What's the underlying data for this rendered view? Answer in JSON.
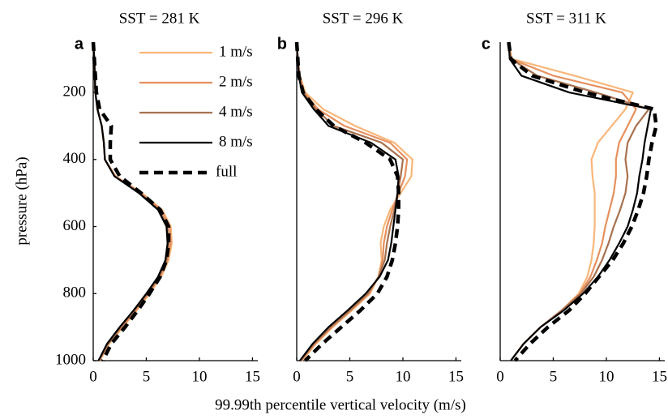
{
  "xlabel": "99.99th percentile vertical velocity (m/s)",
  "chart_data": [
    {
      "type": "line",
      "title": "SST = 281 K",
      "panel": "a",
      "ylabel": "pressure (hPa)",
      "legend": "upper right",
      "y": [
        50,
        100,
        150,
        200,
        250,
        300,
        350,
        400,
        450,
        500,
        550,
        600,
        650,
        700,
        750,
        800,
        850,
        900,
        950,
        1000
      ],
      "xlim": [
        0,
        15.5
      ],
      "xticks": [
        0,
        5,
        10,
        15
      ],
      "ylim": [
        1000,
        50
      ],
      "yticks": [
        200,
        400,
        600,
        800,
        1000
      ],
      "series": [
        {
          "name": "1 m/s",
          "color": "#f9b67a",
          "style": "solid",
          "values": [
            0,
            0.1,
            0.15,
            0.2,
            0.4,
            0.8,
            1.0,
            1.1,
            2.1,
            4.6,
            6.5,
            7.3,
            7.4,
            7.1,
            6.4,
            5.3,
            4.1,
            2.8,
            1.5,
            0.6
          ]
        },
        {
          "name": "2 m/s",
          "color": "#e5905e",
          "style": "solid",
          "values": [
            0,
            0.1,
            0.15,
            0.2,
            0.4,
            0.8,
            1.0,
            1.1,
            2.1,
            4.5,
            6.4,
            7.2,
            7.3,
            7.0,
            6.3,
            5.2,
            4.0,
            2.7,
            1.4,
            0.6
          ]
        },
        {
          "name": "4 m/s",
          "color": "#a8714f",
          "style": "solid",
          "values": [
            0,
            0.1,
            0.15,
            0.2,
            0.4,
            0.8,
            1.0,
            1.1,
            2.0,
            4.4,
            6.2,
            7.0,
            7.1,
            6.9,
            6.2,
            5.1,
            3.9,
            2.6,
            1.4,
            0.5
          ]
        },
        {
          "name": "8 m/s",
          "color": "#000000",
          "style": "solid",
          "values": [
            0,
            0.1,
            0.15,
            0.2,
            0.4,
            0.8,
            1.0,
            1.1,
            2.0,
            4.3,
            6.1,
            6.9,
            7.0,
            6.8,
            6.1,
            5.0,
            3.8,
            2.5,
            1.3,
            0.5
          ]
        },
        {
          "name": "full",
          "color": "#000000",
          "style": "dashed",
          "values": [
            0,
            0.1,
            0.2,
            0.3,
            0.6,
            1.7,
            1.6,
            1.6,
            2.5,
            4.5,
            6.3,
            7.1,
            7.1,
            6.9,
            6.3,
            5.3,
            4.2,
            3.0,
            1.7,
            0.9
          ]
        }
      ]
    },
    {
      "type": "line",
      "title": "SST = 296 K",
      "panel": "b",
      "y": [
        50,
        100,
        150,
        200,
        250,
        300,
        350,
        400,
        450,
        500,
        550,
        600,
        650,
        700,
        750,
        800,
        850,
        900,
        950,
        1000
      ],
      "xlim": [
        0,
        15.5
      ],
      "xticks": [
        0,
        5,
        10,
        15
      ],
      "ylim": [
        1000,
        50
      ],
      "series": [
        {
          "name": "1 m/s",
          "color": "#f9b67a",
          "style": "solid",
          "values": [
            0,
            0.1,
            0.3,
            0.8,
            2.5,
            5.5,
            9.2,
            10.9,
            10.8,
            9.8,
            8.8,
            8.2,
            7.9,
            8.0,
            7.7,
            6.9,
            5.2,
            3.4,
            1.8,
            0.5
          ]
        },
        {
          "name": "2 m/s",
          "color": "#e5905e",
          "style": "solid",
          "values": [
            0,
            0.1,
            0.3,
            0.7,
            2.0,
            4.5,
            8.8,
            10.4,
            10.2,
            9.6,
            9.0,
            8.5,
            8.2,
            8.1,
            7.7,
            6.8,
            5.1,
            3.3,
            1.7,
            0.4
          ]
        },
        {
          "name": "4 m/s",
          "color": "#a8714f",
          "style": "solid",
          "values": [
            0,
            0.1,
            0.25,
            0.6,
            1.8,
            3.5,
            8.0,
            10.0,
            9.8,
            9.5,
            9.2,
            8.8,
            8.5,
            8.3,
            7.7,
            6.7,
            5.0,
            3.2,
            1.6,
            0.4
          ]
        },
        {
          "name": "8 m/s",
          "color": "#000000",
          "style": "solid",
          "values": [
            0,
            0.1,
            0.2,
            0.5,
            1.6,
            3.0,
            7.0,
            9.3,
            9.6,
            9.5,
            9.3,
            9.1,
            8.9,
            8.6,
            7.8,
            6.5,
            4.8,
            3.0,
            1.5,
            0.3
          ]
        },
        {
          "name": "full",
          "color": "#000000",
          "style": "dashed",
          "values": [
            0,
            0.1,
            0.2,
            0.6,
            1.8,
            3.5,
            6.5,
            8.8,
            9.5,
            9.6,
            9.6,
            9.5,
            9.3,
            9.0,
            8.5,
            7.6,
            6.0,
            4.2,
            2.4,
            0.8
          ]
        }
      ]
    },
    {
      "type": "line",
      "title": "SST = 311 K",
      "panel": "c",
      "y": [
        50,
        100,
        150,
        200,
        250,
        300,
        350,
        400,
        450,
        500,
        550,
        600,
        650,
        700,
        750,
        800,
        850,
        900,
        950,
        1000
      ],
      "xlim": [
        0,
        15.5
      ],
      "xticks": [
        0,
        5,
        10,
        15
      ],
      "ylim": [
        1000,
        50
      ],
      "series": [
        {
          "name": "1 m/s",
          "color": "#f9b67a",
          "style": "solid",
          "values": [
            0.8,
            1.1,
            7.0,
            12.5,
            11.8,
            10.5,
            9.2,
            8.6,
            8.7,
            8.9,
            8.9,
            8.9,
            8.8,
            8.6,
            8.2,
            7.4,
            5.8,
            3.8,
            2.2,
            1.0
          ]
        },
        {
          "name": "2 m/s",
          "color": "#e5905e",
          "style": "solid",
          "values": [
            0.8,
            1.0,
            5.0,
            11.5,
            12.8,
            12.0,
            11.2,
            10.9,
            10.9,
            10.7,
            10.3,
            9.9,
            9.6,
            9.1,
            8.5,
            7.5,
            5.8,
            3.8,
            2.2,
            1.0
          ]
        },
        {
          "name": "4 m/s",
          "color": "#a8714f",
          "style": "solid",
          "values": [
            0.8,
            1.0,
            3.5,
            9.0,
            14.0,
            12.8,
            12.0,
            11.8,
            12.0,
            11.8,
            11.3,
            10.7,
            10.2,
            9.6,
            8.8,
            7.6,
            5.8,
            3.8,
            2.2,
            1.0
          ]
        },
        {
          "name": "8 m/s",
          "color": "#000000",
          "style": "solid",
          "values": [
            0.8,
            0.9,
            2.0,
            6.5,
            14.2,
            13.9,
            13.6,
            13.4,
            13.1,
            12.9,
            12.5,
            12.0,
            11.2,
            10.3,
            9.2,
            7.8,
            6.0,
            3.8,
            2.2,
            1.0
          ]
        },
        {
          "name": "full",
          "color": "#000000",
          "style": "dashed",
          "values": [
            0.8,
            1.0,
            3.0,
            8.0,
            14.5,
            14.7,
            14.3,
            14.0,
            13.8,
            13.5,
            13.0,
            12.4,
            11.6,
            10.6,
            9.3,
            8.0,
            6.5,
            4.5,
            2.8,
            1.4
          ]
        }
      ]
    }
  ]
}
